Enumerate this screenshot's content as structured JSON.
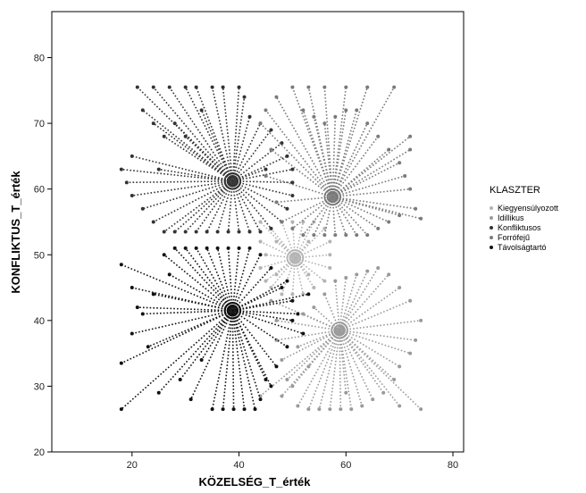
{
  "chart_data": {
    "type": "scatter",
    "style": "star cluster plot (points connected to cluster centers)",
    "xlabel": "KÖZELSÉG_T_érték",
    "ylabel": "KONFLIKTUS_T_érték",
    "xlim": [
      5,
      82
    ],
    "ylim": [
      20,
      87
    ],
    "xticks": [
      20,
      40,
      60,
      80
    ],
    "yticks": [
      20,
      30,
      40,
      50,
      60,
      70,
      80
    ],
    "grid": false,
    "legend": {
      "title": "KLASZTER",
      "placement": "right",
      "entries": [
        "Kiegyensúlyozott",
        "Idillikus",
        "Konfliktusos",
        "Forrófejű",
        "Távolságtartó"
      ]
    },
    "series": [
      {
        "name": "Kiegyensúlyozott",
        "color": "#b3b3b3",
        "center": [
          50.5,
          49.5
        ],
        "points": [
          [
            44,
            55
          ],
          [
            46,
            54
          ],
          [
            48,
            55
          ],
          [
            50,
            55
          ],
          [
            52,
            55
          ],
          [
            54,
            55
          ],
          [
            56,
            54
          ],
          [
            44,
            52
          ],
          [
            45,
            50
          ],
          [
            44,
            48
          ],
          [
            45,
            46
          ],
          [
            46,
            45
          ],
          [
            48,
            44
          ],
          [
            50,
            44
          ],
          [
            52,
            44
          ],
          [
            54,
            45
          ],
          [
            56,
            46
          ],
          [
            57,
            48
          ],
          [
            57,
            50
          ],
          [
            57,
            52
          ],
          [
            47,
            52
          ],
          [
            53,
            52
          ],
          [
            47,
            47
          ],
          [
            53,
            47
          ]
        ]
      },
      {
        "name": "Idillikus",
        "color": "#9a9a9a",
        "center": [
          58.8,
          38.5
        ],
        "points": [
          [
            46,
            43
          ],
          [
            47,
            40
          ],
          [
            47,
            37
          ],
          [
            48,
            34
          ],
          [
            49,
            31
          ],
          [
            50,
            30
          ],
          [
            44,
            28.5
          ],
          [
            48,
            28.5
          ],
          [
            51,
            27
          ],
          [
            53,
            26.5
          ],
          [
            55,
            26.5
          ],
          [
            57,
            26.5
          ],
          [
            59,
            26.5
          ],
          [
            61,
            26.5
          ],
          [
            63,
            27
          ],
          [
            65,
            28
          ],
          [
            67,
            29
          ],
          [
            69,
            31
          ],
          [
            70,
            33
          ],
          [
            72,
            35
          ],
          [
            73,
            37
          ],
          [
            74,
            40
          ],
          [
            72,
            43
          ],
          [
            70,
            45
          ],
          [
            68,
            47
          ],
          [
            66,
            48
          ],
          [
            64,
            47.5
          ],
          [
            62,
            47
          ],
          [
            60,
            46.5
          ],
          [
            58,
            46
          ],
          [
            56,
            44
          ],
          [
            54,
            42
          ],
          [
            52,
            41
          ],
          [
            51,
            36
          ],
          [
            53,
            33
          ],
          [
            74,
            26.5
          ],
          [
            70,
            27
          ],
          [
            60,
            29
          ]
        ]
      },
      {
        "name": "Konfliktusos",
        "color": "#333333",
        "center": [
          38.8,
          61.2
        ],
        "points": [
          [
            21,
            75.5
          ],
          [
            24,
            75.5
          ],
          [
            27,
            75.5
          ],
          [
            30,
            75.5
          ],
          [
            32,
            75.5
          ],
          [
            35,
            75.5
          ],
          [
            37,
            75.5
          ],
          [
            40,
            75.5
          ],
          [
            22,
            72
          ],
          [
            24,
            70
          ],
          [
            26,
            68
          ],
          [
            20,
            65
          ],
          [
            18,
            63
          ],
          [
            19,
            61
          ],
          [
            20,
            59
          ],
          [
            22,
            57
          ],
          [
            24,
            55
          ],
          [
            26,
            53.5
          ],
          [
            28,
            53.5
          ],
          [
            30,
            53.5
          ],
          [
            32,
            53.5
          ],
          [
            34,
            53.5
          ],
          [
            36,
            53.5
          ],
          [
            38,
            53.5
          ],
          [
            40,
            53.5
          ],
          [
            42,
            53.5
          ],
          [
            44,
            53.5
          ],
          [
            46,
            54
          ],
          [
            48,
            55
          ],
          [
            49,
            57
          ],
          [
            50,
            59
          ],
          [
            50,
            61
          ],
          [
            50,
            63
          ],
          [
            49,
            65
          ],
          [
            48,
            67
          ],
          [
            46,
            69
          ],
          [
            44,
            70
          ],
          [
            42,
            71
          ],
          [
            28,
            70
          ],
          [
            30,
            68
          ],
          [
            33,
            72
          ],
          [
            41,
            74
          ],
          [
            25,
            63
          ],
          [
            45,
            63
          ]
        ]
      },
      {
        "name": "Forrófejű",
        "color": "#7a7a7a",
        "center": [
          57.5,
          58.8
        ],
        "points": [
          [
            50,
            75.5
          ],
          [
            53,
            75.5
          ],
          [
            56,
            75.5
          ],
          [
            60,
            75.5
          ],
          [
            64,
            75.5
          ],
          [
            69,
            75.5
          ],
          [
            47,
            74
          ],
          [
            45,
            72
          ],
          [
            44,
            70
          ],
          [
            46,
            66
          ],
          [
            45,
            62
          ],
          [
            47,
            58
          ],
          [
            48,
            55
          ],
          [
            50,
            54
          ],
          [
            52,
            53
          ],
          [
            54,
            53
          ],
          [
            56,
            53
          ],
          [
            58,
            53
          ],
          [
            60,
            53
          ],
          [
            62,
            53
          ],
          [
            64,
            53
          ],
          [
            66,
            54
          ],
          [
            68,
            55
          ],
          [
            70,
            56
          ],
          [
            73,
            57
          ],
          [
            74,
            55.5
          ],
          [
            72,
            60
          ],
          [
            71,
            62
          ],
          [
            70,
            64
          ],
          [
            72,
            66
          ],
          [
            72,
            68
          ],
          [
            68,
            66
          ],
          [
            66,
            68
          ],
          [
            64,
            70
          ],
          [
            62,
            72
          ],
          [
            60,
            72
          ],
          [
            58,
            71
          ],
          [
            56,
            70
          ],
          [
            54,
            71
          ],
          [
            52,
            72
          ]
        ]
      },
      {
        "name": "Távolságtartó",
        "color": "#111111",
        "center": [
          38.8,
          41.5
        ],
        "points": [
          [
            18,
            48.5
          ],
          [
            18,
            33.5
          ],
          [
            18,
            26.5
          ],
          [
            20,
            45
          ],
          [
            20,
            38
          ],
          [
            21,
            42
          ],
          [
            22,
            41
          ],
          [
            23,
            36
          ],
          [
            24,
            44
          ],
          [
            25,
            29
          ],
          [
            26,
            50
          ],
          [
            27,
            47
          ],
          [
            28,
            51
          ],
          [
            29,
            31
          ],
          [
            30,
            51
          ],
          [
            31,
            28
          ],
          [
            32,
            51
          ],
          [
            33,
            34
          ],
          [
            34,
            51
          ],
          [
            35,
            26.5
          ],
          [
            36,
            51
          ],
          [
            37,
            26.5
          ],
          [
            38,
            51
          ],
          [
            39,
            26.5
          ],
          [
            40,
            51
          ],
          [
            41,
            26.5
          ],
          [
            42,
            51
          ],
          [
            43,
            26.5
          ],
          [
            44,
            50
          ],
          [
            45,
            31
          ],
          [
            46,
            48
          ],
          [
            47,
            33
          ],
          [
            48,
            45
          ],
          [
            49,
            36
          ],
          [
            50,
            40
          ],
          [
            51,
            41
          ],
          [
            52,
            38
          ],
          [
            53,
            44
          ],
          [
            50,
            43
          ],
          [
            49,
            46
          ],
          [
            44,
            28
          ],
          [
            46,
            30
          ]
        ]
      }
    ]
  }
}
